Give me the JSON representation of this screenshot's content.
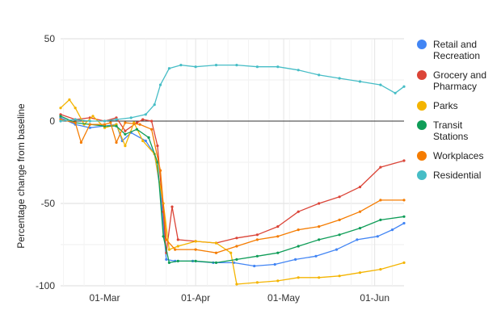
{
  "chart_data": {
    "type": "line",
    "title": "",
    "xlabel": "",
    "ylabel": "Percentage change from baseline",
    "ylim": [
      -100,
      50
    ],
    "yticks": [
      50,
      0,
      -50,
      -100
    ],
    "xlim": [
      "2020-02-15",
      "2020-06-11"
    ],
    "xticks": [
      {
        "label": "01-Mar",
        "date": "2020-03-01"
      },
      {
        "label": "01-Apr",
        "date": "2020-04-01"
      },
      {
        "label": "01-May",
        "date": "2020-05-01"
      },
      {
        "label": "01-Jun",
        "date": "2020-06-01"
      }
    ],
    "grid": true,
    "legend_position": "right",
    "series": [
      {
        "name": "Retail and Recreation",
        "color": "#4285F4",
        "points": [
          [
            "2020-02-15",
            2
          ],
          [
            "2020-02-20",
            -2
          ],
          [
            "2020-02-25",
            -4
          ],
          [
            "2020-03-01",
            -3
          ],
          [
            "2020-03-05",
            -2
          ],
          [
            "2020-03-07",
            -12
          ],
          [
            "2020-03-10",
            -7
          ],
          [
            "2020-03-15",
            -12
          ],
          [
            "2020-03-18",
            -20
          ],
          [
            "2020-03-20",
            -42
          ],
          [
            "2020-03-22",
            -84
          ],
          [
            "2020-03-25",
            -85
          ],
          [
            "2020-03-31",
            -85
          ],
          [
            "2020-04-07",
            -86
          ],
          [
            "2020-04-14",
            -86
          ],
          [
            "2020-04-21",
            -88
          ],
          [
            "2020-04-28",
            -87
          ],
          [
            "2020-05-05",
            -84
          ],
          [
            "2020-05-12",
            -82
          ],
          [
            "2020-05-19",
            -78
          ],
          [
            "2020-05-26",
            -72
          ],
          [
            "2020-06-02",
            -70
          ],
          [
            "2020-06-07",
            -66
          ],
          [
            "2020-06-11",
            -62
          ]
        ]
      },
      {
        "name": "Grocery and Pharmacy",
        "color": "#DB4437",
        "points": [
          [
            "2020-02-15",
            4
          ],
          [
            "2020-02-20",
            1
          ],
          [
            "2020-02-25",
            2
          ],
          [
            "2020-03-01",
            0
          ],
          [
            "2020-03-05",
            2
          ],
          [
            "2020-03-08",
            -6
          ],
          [
            "2020-03-12",
            -1
          ],
          [
            "2020-03-14",
            1
          ],
          [
            "2020-03-17",
            0
          ],
          [
            "2020-03-19",
            -15
          ],
          [
            "2020-03-21",
            -55
          ],
          [
            "2020-03-22",
            -80
          ],
          [
            "2020-03-24",
            -52
          ],
          [
            "2020-03-26",
            -72
          ],
          [
            "2020-04-01",
            -73
          ],
          [
            "2020-04-08",
            -74
          ],
          [
            "2020-04-15",
            -71
          ],
          [
            "2020-04-22",
            -69
          ],
          [
            "2020-04-29",
            -64
          ],
          [
            "2020-05-06",
            -55
          ],
          [
            "2020-05-13",
            -50
          ],
          [
            "2020-05-20",
            -46
          ],
          [
            "2020-05-27",
            -40
          ],
          [
            "2020-06-03",
            -28
          ],
          [
            "2020-06-11",
            -24
          ]
        ]
      },
      {
        "name": "Parks",
        "color": "#F4B400",
        "points": [
          [
            "2020-02-15",
            8
          ],
          [
            "2020-02-18",
            13
          ],
          [
            "2020-02-20",
            8
          ],
          [
            "2020-02-23",
            -2
          ],
          [
            "2020-02-26",
            3
          ],
          [
            "2020-03-01",
            -4
          ],
          [
            "2020-03-05",
            -2
          ],
          [
            "2020-03-08",
            -15
          ],
          [
            "2020-03-11",
            -1
          ],
          [
            "2020-03-14",
            -12
          ],
          [
            "2020-03-18",
            -20
          ],
          [
            "2020-03-21",
            -50
          ],
          [
            "2020-03-23",
            -78
          ],
          [
            "2020-03-26",
            -76
          ],
          [
            "2020-04-01",
            -73
          ],
          [
            "2020-04-08",
            -74
          ],
          [
            "2020-04-13",
            -80
          ],
          [
            "2020-04-15",
            -99
          ],
          [
            "2020-04-22",
            -98
          ],
          [
            "2020-04-29",
            -97
          ],
          [
            "2020-05-06",
            -95
          ],
          [
            "2020-05-13",
            -95
          ],
          [
            "2020-05-20",
            -94
          ],
          [
            "2020-05-27",
            -92
          ],
          [
            "2020-06-03",
            -90
          ],
          [
            "2020-06-11",
            -86
          ]
        ]
      },
      {
        "name": "Transit Stations",
        "color": "#0F9D58",
        "points": [
          [
            "2020-02-15",
            3
          ],
          [
            "2020-02-20",
            -1
          ],
          [
            "2020-02-25",
            -2
          ],
          [
            "2020-03-01",
            -3
          ],
          [
            "2020-03-05",
            -3
          ],
          [
            "2020-03-08",
            -8
          ],
          [
            "2020-03-12",
            -5
          ],
          [
            "2020-03-16",
            -10
          ],
          [
            "2020-03-19",
            -25
          ],
          [
            "2020-03-21",
            -70
          ],
          [
            "2020-03-23",
            -86
          ],
          [
            "2020-03-26",
            -85
          ],
          [
            "2020-04-01",
            -85
          ],
          [
            "2020-04-08",
            -86
          ],
          [
            "2020-04-15",
            -84
          ],
          [
            "2020-04-22",
            -82
          ],
          [
            "2020-04-29",
            -80
          ],
          [
            "2020-05-06",
            -76
          ],
          [
            "2020-05-13",
            -72
          ],
          [
            "2020-05-20",
            -69
          ],
          [
            "2020-05-27",
            -65
          ],
          [
            "2020-06-03",
            -60
          ],
          [
            "2020-06-11",
            -58
          ]
        ]
      },
      {
        "name": "Workplaces",
        "color": "#F57C00",
        "points": [
          [
            "2020-02-15",
            1
          ],
          [
            "2020-02-20",
            -1
          ],
          [
            "2020-02-22",
            -13
          ],
          [
            "2020-02-25",
            -2
          ],
          [
            "2020-03-01",
            -2
          ],
          [
            "2020-03-03",
            -1
          ],
          [
            "2020-03-05",
            -13
          ],
          [
            "2020-03-08",
            -1
          ],
          [
            "2020-03-13",
            -2
          ],
          [
            "2020-03-17",
            -5
          ],
          [
            "2020-03-20",
            -30
          ],
          [
            "2020-03-22",
            -72
          ],
          [
            "2020-03-25",
            -78
          ],
          [
            "2020-04-01",
            -78
          ],
          [
            "2020-04-08",
            -80
          ],
          [
            "2020-04-15",
            -76
          ],
          [
            "2020-04-22",
            -72
          ],
          [
            "2020-04-29",
            -70
          ],
          [
            "2020-05-06",
            -66
          ],
          [
            "2020-05-13",
            -64
          ],
          [
            "2020-05-20",
            -60
          ],
          [
            "2020-05-27",
            -55
          ],
          [
            "2020-06-03",
            -48
          ],
          [
            "2020-06-11",
            -48
          ]
        ]
      },
      {
        "name": "Residential",
        "color": "#46BDC6",
        "points": [
          [
            "2020-02-15",
            0
          ],
          [
            "2020-02-20",
            1
          ],
          [
            "2020-02-25",
            0
          ],
          [
            "2020-03-01",
            0
          ],
          [
            "2020-03-05",
            1
          ],
          [
            "2020-03-10",
            2
          ],
          [
            "2020-03-15",
            4
          ],
          [
            "2020-03-18",
            10
          ],
          [
            "2020-03-20",
            22
          ],
          [
            "2020-03-23",
            32
          ],
          [
            "2020-03-27",
            34
          ],
          [
            "2020-04-01",
            33
          ],
          [
            "2020-04-08",
            34
          ],
          [
            "2020-04-15",
            34
          ],
          [
            "2020-04-22",
            33
          ],
          [
            "2020-04-29",
            33
          ],
          [
            "2020-05-06",
            31
          ],
          [
            "2020-05-13",
            28
          ],
          [
            "2020-05-20",
            26
          ],
          [
            "2020-05-27",
            24
          ],
          [
            "2020-06-03",
            22
          ],
          [
            "2020-06-08",
            17
          ],
          [
            "2020-06-11",
            21
          ]
        ]
      }
    ]
  }
}
